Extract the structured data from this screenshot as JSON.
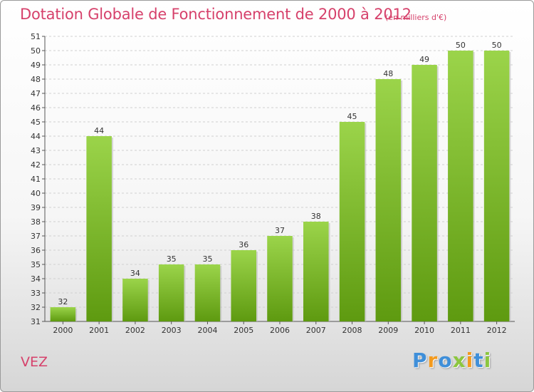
{
  "header": {
    "title": "Dotation Globale de Fonctionnement de 2000 à 2012",
    "subtitle": "(en milliers d'€)"
  },
  "footer": {
    "place": "VEZ",
    "logo": "Proxiti"
  },
  "colors": {
    "accent": "#d6416b",
    "bar_light": "#9bd44a",
    "bar_dark": "#5e9a10",
    "logo_letters": [
      "#3f8fd9",
      "#f39a1e",
      "#3f8fd9",
      "#8cc63f",
      "#f39a1e",
      "#3f8fd9",
      "#8cc63f"
    ]
  },
  "chart_data": {
    "type": "bar",
    "categories": [
      "2000",
      "2001",
      "2002",
      "2003",
      "2004",
      "2005",
      "2006",
      "2007",
      "2008",
      "2009",
      "2010",
      "2011",
      "2012"
    ],
    "values": [
      32,
      44,
      34,
      35,
      35,
      36,
      37,
      38,
      45,
      48,
      49,
      50,
      50
    ],
    "data_labels": [
      "32",
      "44",
      "34",
      "35",
      "35",
      "36",
      "37",
      "38",
      "45",
      "48",
      "49",
      "50",
      "50"
    ],
    "yticks": [
      "31",
      "32",
      "33",
      "34",
      "35",
      "36",
      "37",
      "38",
      "39",
      "40",
      "41",
      "42",
      "43",
      "44",
      "45",
      "46",
      "47",
      "48",
      "49",
      "50",
      "51"
    ],
    "ylim": [
      31,
      51
    ],
    "grid": "horizontal dashed"
  }
}
